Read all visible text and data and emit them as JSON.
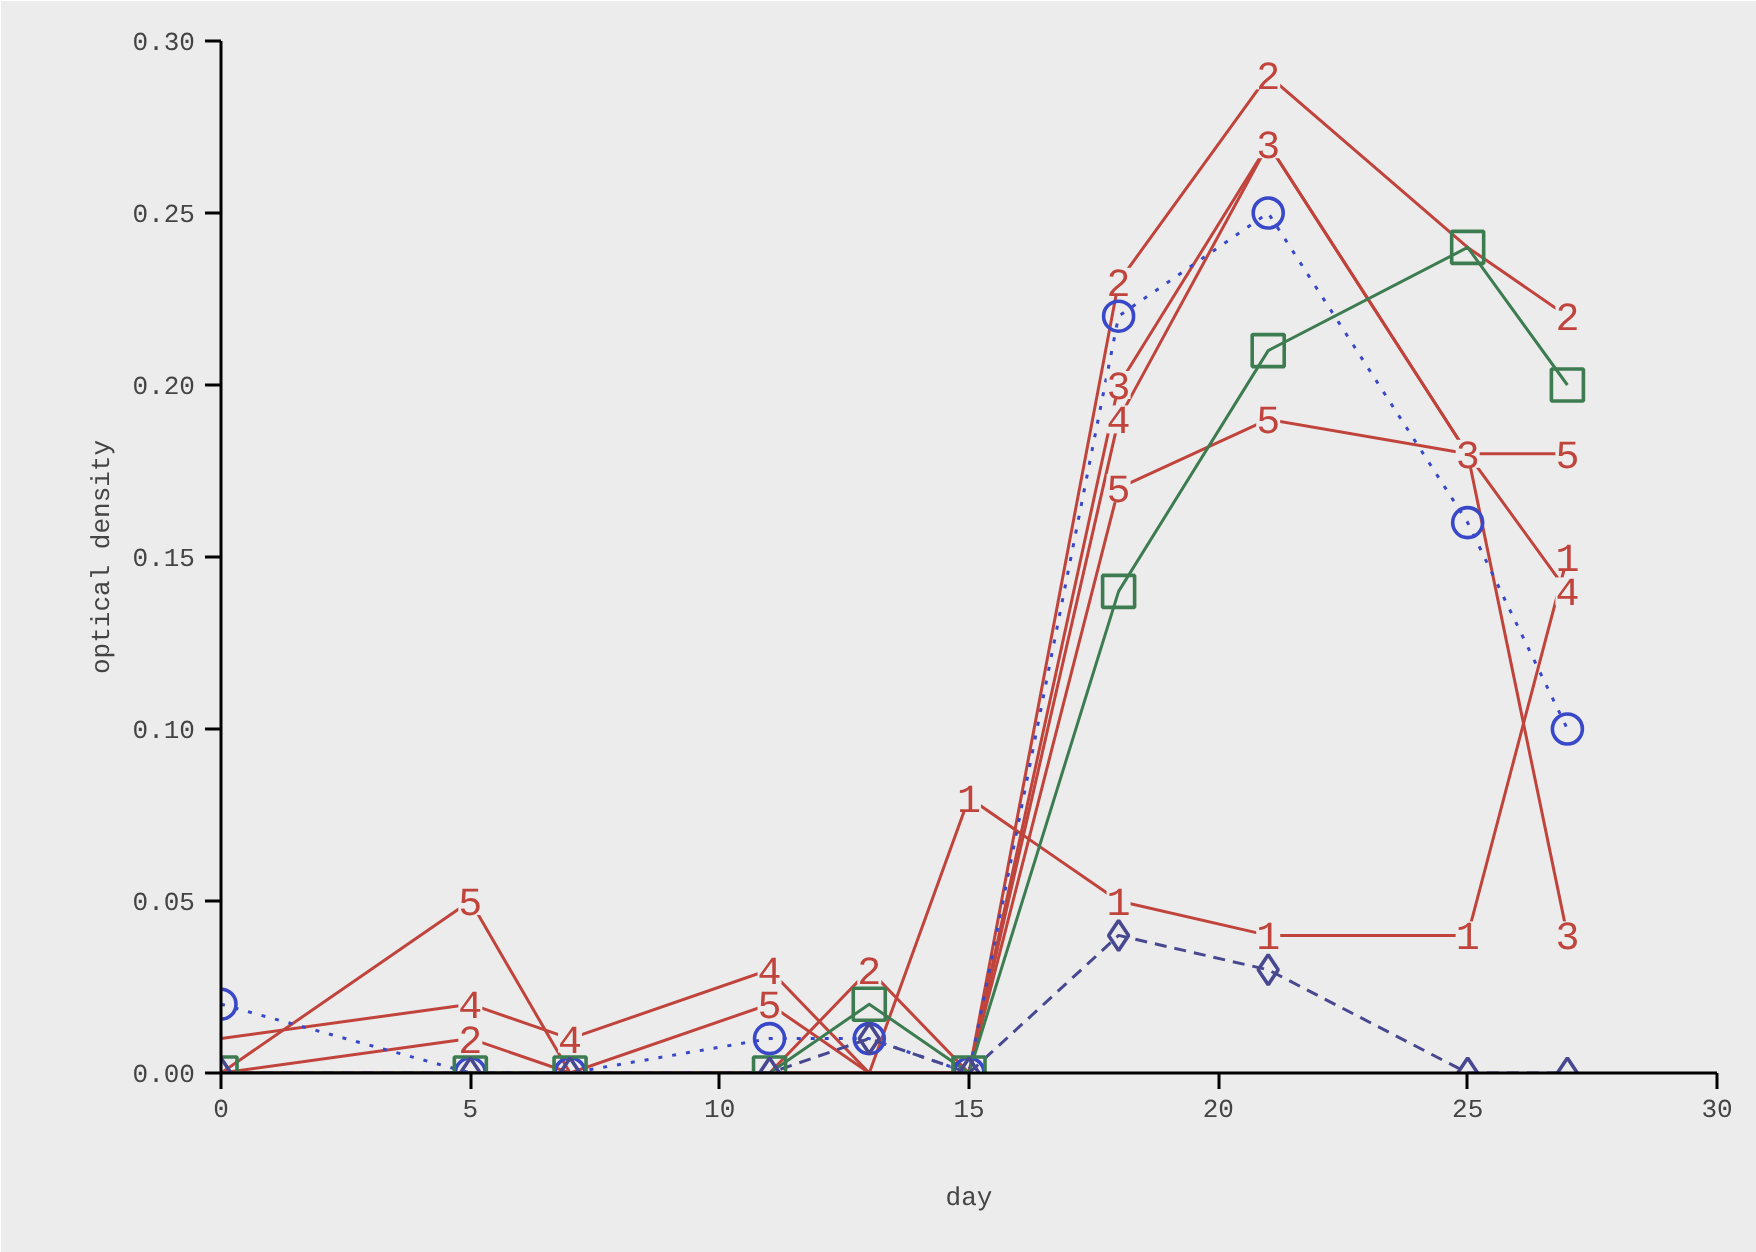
{
  "chart_data": {
    "type": "line",
    "xlabel": "day",
    "ylabel": "optical density",
    "x": [
      0,
      5,
      7,
      11,
      13,
      15,
      18,
      21,
      25,
      27
    ],
    "xlim": [
      0,
      30
    ],
    "ylim": [
      0,
      0.3
    ],
    "xticks": [
      0,
      5,
      10,
      15,
      20,
      25,
      30
    ],
    "yticks": [
      {
        "value": 0,
        "label": "0.00"
      },
      {
        "value": 0.05,
        "label": "0.05"
      },
      {
        "value": 0.1,
        "label": "0.10"
      },
      {
        "value": 0.15,
        "label": "0.15"
      },
      {
        "value": 0.2,
        "label": "0.20"
      },
      {
        "value": 0.25,
        "label": "0.25"
      },
      {
        "value": 0.3,
        "label": "0.30"
      }
    ],
    "grid": false,
    "series": [
      {
        "name": "1",
        "color": "#c0443c",
        "line_style": "solid",
        "values": [
          0,
          0,
          0,
          0,
          0,
          0.08,
          0.05,
          0.04,
          0.04,
          0.15
        ]
      },
      {
        "name": "2",
        "color": "#c0443c",
        "line_style": "solid",
        "values": [
          0,
          0.01,
          0,
          0,
          0.03,
          0,
          0.23,
          0.29,
          0.24,
          0.22
        ]
      },
      {
        "name": "3",
        "color": "#c0443c",
        "line_style": "solid",
        "values": [
          0,
          0,
          0,
          0,
          0,
          0,
          0.2,
          0.27,
          0.18,
          0.04
        ]
      },
      {
        "name": "4",
        "color": "#c0443c",
        "line_style": "solid",
        "values": [
          0.01,
          0.02,
          0.01,
          0.03,
          0,
          0,
          0.19,
          0.27,
          0.18,
          0.14
        ]
      },
      {
        "name": "5",
        "color": "#c0443c",
        "line_style": "solid",
        "values": [
          0,
          0.05,
          0,
          0.02,
          0,
          0,
          0.17,
          0.19,
          0.18,
          0.18
        ]
      },
      {
        "color": "#3848c8",
        "marker": "circle",
        "line_style": "dotted",
        "values": [
          0.02,
          0,
          0,
          0.01,
          0.01,
          0,
          0.22,
          0.25,
          0.16,
          0.1
        ]
      },
      {
        "color": "#3c7c50",
        "marker": "square",
        "line_style": "solid",
        "values": [
          0,
          0,
          0,
          0,
          0.02,
          0,
          0.14,
          0.21,
          0.24,
          0.2
        ]
      },
      {
        "color": "#484890",
        "marker": "diamond",
        "line_style": "dashed",
        "values": [
          0,
          0,
          0,
          0,
          0.01,
          0,
          0.04,
          0.03,
          0,
          0
        ]
      }
    ]
  }
}
